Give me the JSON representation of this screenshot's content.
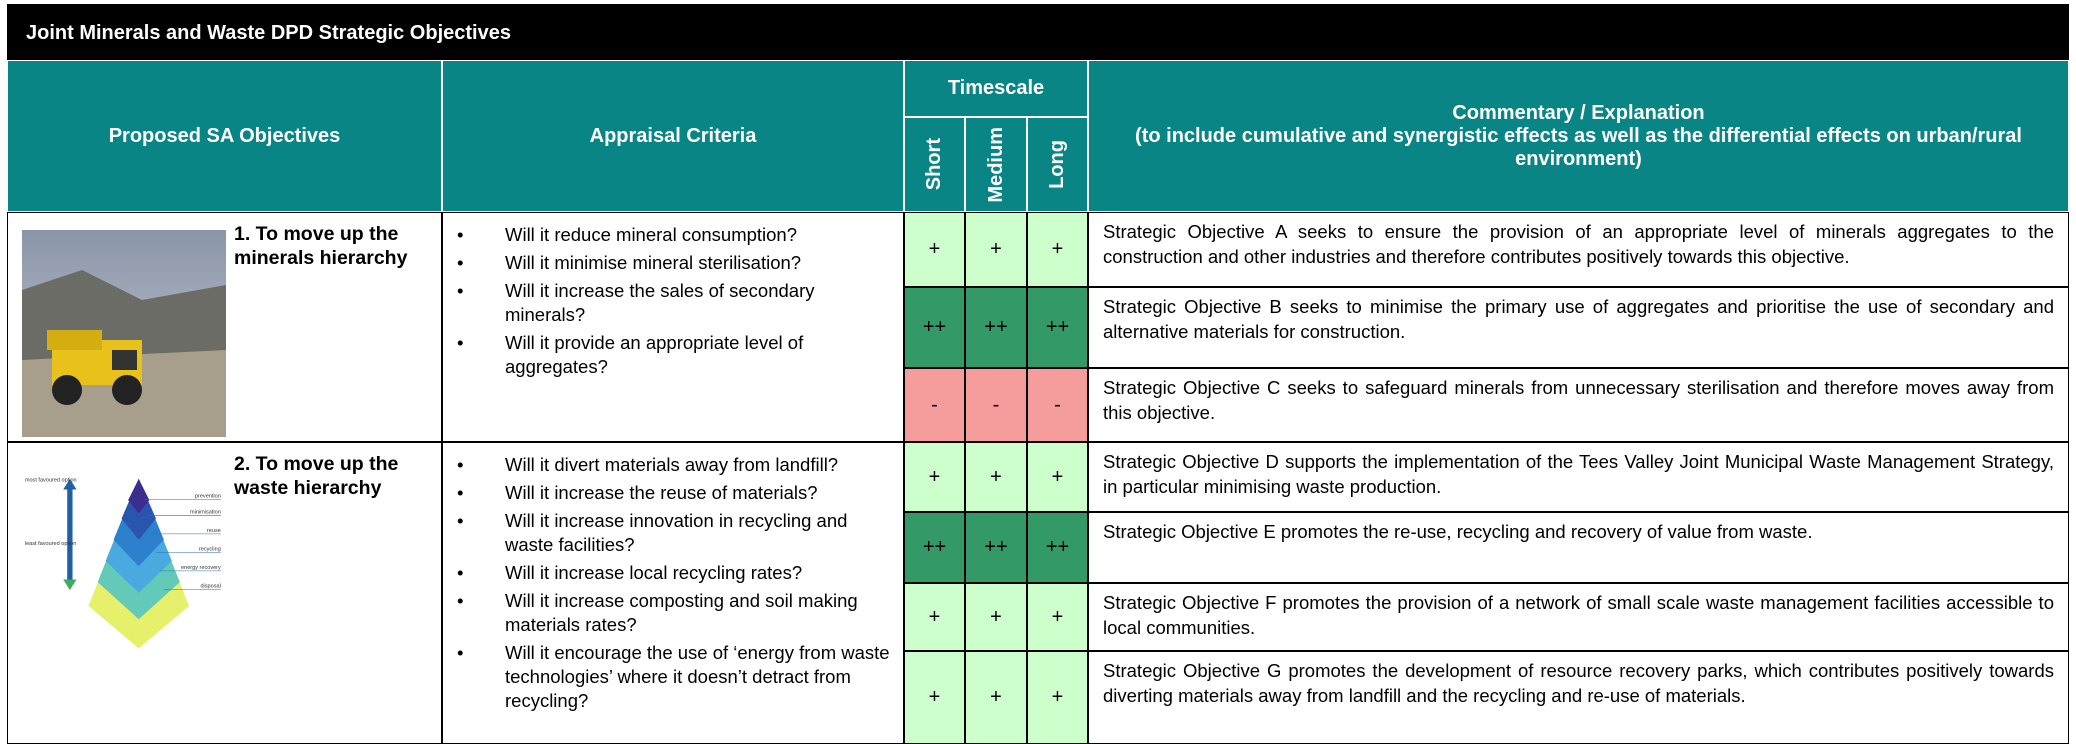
{
  "title": "Joint Minerals and Waste DPD Strategic Objectives",
  "header": {
    "objectives": "Proposed SA Objectives",
    "criteria": "Appraisal Criteria",
    "timescale": "Timescale",
    "timescale_cols": [
      "Short",
      "Medium",
      "Long"
    ],
    "commentary": "Commentary / Explanation",
    "commentary_note": "(to include cumulative and synergistic effects as well as the differential effects on urban/rural environment)"
  },
  "pyramid": {
    "top_label": "most favoured option",
    "bottom_label": "least favoured option",
    "levels": [
      "prevention",
      "minimisation",
      "reuse",
      "recycling",
      "energy recovery",
      "disposal"
    ]
  },
  "rows": [
    {
      "objective": "1. To move up the minerals hierarchy",
      "criteria": [
        "Will it reduce mineral consumption?",
        "Will it minimise mineral sterilisation?",
        "Will it increase the sales of secondary minerals?",
        "Will it provide an appropriate level of aggregates?"
      ],
      "assessments": [
        {
          "scores": [
            "+",
            "+",
            "+"
          ],
          "color": "#ccffcc",
          "commentary": "Strategic Objective A seeks to ensure the provision of an appropriate level of minerals aggregates to the construction and other industries and therefore contributes positively towards this objective."
        },
        {
          "scores": [
            "++",
            "++",
            "++"
          ],
          "color": "#339966",
          "commentary": "Strategic Objective B seeks to minimise the primary use of aggregates and prioritise the use of secondary and alternative materials for construction."
        },
        {
          "scores": [
            "-",
            "-",
            "-"
          ],
          "color": "#f59d9d",
          "commentary": "Strategic Objective C seeks to safeguard minerals from unnecessary sterilisation and therefore moves away from this objective."
        }
      ]
    },
    {
      "objective": "2. To move up the waste hierarchy",
      "criteria": [
        "Will it divert materials away from landfill?",
        "Will it increase the reuse of materials?",
        "Will it increase innovation in recycling and waste facilities?",
        "Will it increase local recycling rates?",
        "Will it increase composting and soil making materials rates?",
        "Will it encourage the use of ‘energy from waste technologies’ where it doesn’t detract from recycling?"
      ],
      "assessments": [
        {
          "scores": [
            "+",
            "+",
            "+"
          ],
          "color": "#ccffcc",
          "commentary": "Strategic Objective D supports the implementation of the Tees Valley Joint Municipal Waste Management Strategy, in particular minimising waste production."
        },
        {
          "scores": [
            "++",
            "++",
            "++"
          ],
          "color": "#339966",
          "commentary": "Strategic Objective E promotes the re-use, recycling and recovery of value from waste."
        },
        {
          "scores": [
            "+",
            "+",
            "+"
          ],
          "color": "#ccffcc",
          "commentary": "Strategic Objective F promotes the provision of a network of small scale waste management facilities accessible to local communities."
        },
        {
          "scores": [
            "+",
            "+",
            "+"
          ],
          "color": "#ccffcc",
          "commentary": "Strategic Objective G promotes the development of resource recovery parks, which contributes positively towards diverting materials away from landfill and the recycling and re-use of materials."
        }
      ]
    }
  ]
}
